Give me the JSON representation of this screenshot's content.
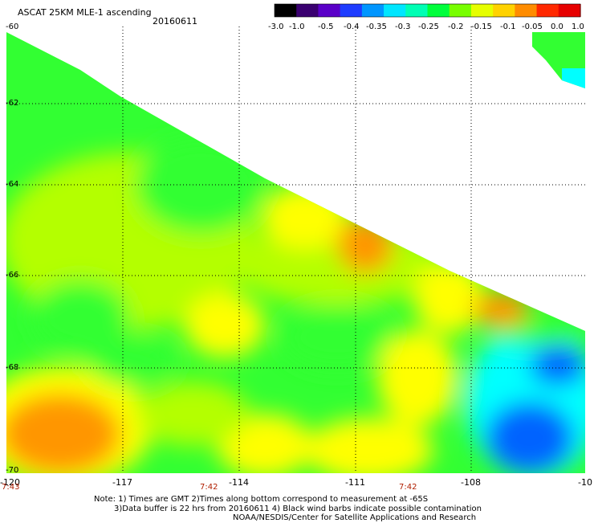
{
  "header": {
    "title": "ASCAT 25KM MLE-1 ascending",
    "date": "20160611"
  },
  "color_scale": {
    "labels": [
      "-3.0",
      "-1.0",
      "-0.5",
      "-0.4",
      "-0.35",
      "-0.3",
      "-0.25",
      "-0.2",
      "-0.15",
      "-0.1",
      "-0.05",
      "0.0",
      "1.0"
    ],
    "colors": [
      "#000000",
      "#3a0070",
      "#5a00c8",
      "#1e3cff",
      "#0096ff",
      "#00e6ff",
      "#00ffb4",
      "#00ff3c",
      "#78ff00",
      "#e6ff00",
      "#ffd200",
      "#ff8c00",
      "#ff2800",
      "#e60000"
    ]
  },
  "map": {
    "lat_labels": [
      "-60",
      "-62",
      "-64",
      "-66",
      "-68",
      "-70"
    ],
    "lon_labels": [
      "-120",
      "-117",
      "-114",
      "-111",
      "-108",
      "-10"
    ],
    "time_labels": [
      "7:43",
      "7:42",
      "7:42"
    ],
    "lat_range": [
      -70,
      -60
    ],
    "lon_range": [
      -120,
      -105
    ],
    "grid": true,
    "data_colors": {
      "orange": "#ff9600",
      "yellow": "#ffff00",
      "light_green": "#b4ff00",
      "green": "#32ff32",
      "cyan": "#00ffff",
      "blue": "#0064ff"
    }
  },
  "notes": {
    "line1": "Note: 1) Times are GMT 2)Times along bottom correspond to measurement at -65S",
    "line2": "3)Data buffer is 22 hrs from 20160611 4) Black wind barbs indicate possible contamination",
    "line3": "NOAA/NESDIS/Center for Satellite Applications and Research"
  }
}
